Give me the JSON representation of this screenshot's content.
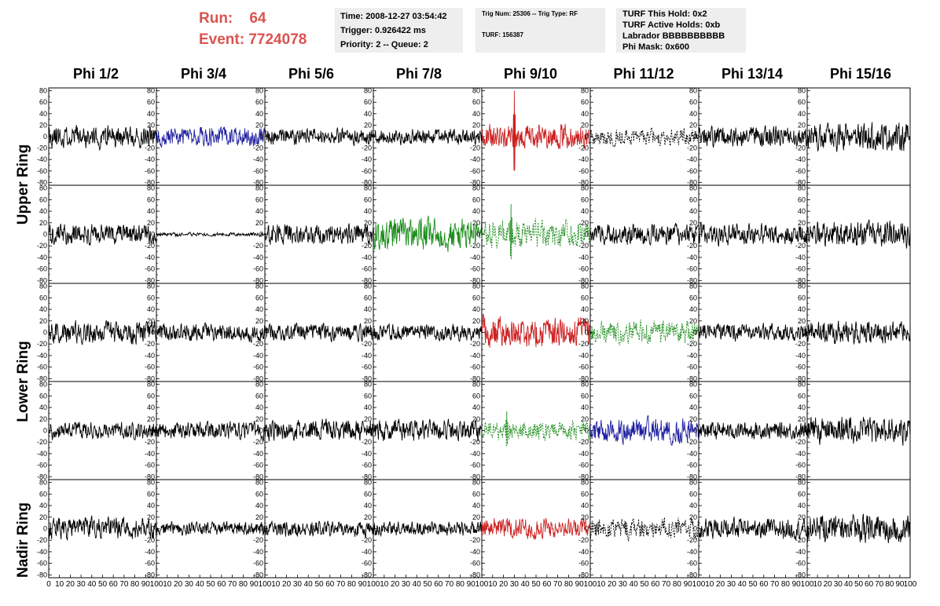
{
  "header": {
    "run_label": "Run:",
    "run_value": "64",
    "event_label": "Event:",
    "event_value": "7724078",
    "box1": [
      "Time: 2008-12-27 03:54:42",
      "Trigger: 0.926422 ms",
      "Priority: 2 -- Queue: 2"
    ],
    "box2_line1": "Trig Num: 25306 -- Trig Type: RF",
    "box2_line2": "TURF: 156387",
    "box3": [
      "TURF This Hold: 0x2",
      "TURF Active Holds: 0xb",
      "Labrador BBBBBBBBBB",
      "Phi Mask: 0x600"
    ],
    "accent_color": "#d9534f"
  },
  "phi_labels": [
    "Phi 1/2",
    "Phi 3/4",
    "Phi 5/6",
    "Phi 7/8",
    "Phi 9/10",
    "Phi 11/12",
    "Phi 13/14",
    "Phi 15/16"
  ],
  "ring_labels": {
    "upper": "Upper Ring",
    "lower": "Lower Ring",
    "nadir": "Nadir Ring"
  },
  "chart_data": {
    "type": "line",
    "xlim": [
      0,
      100
    ],
    "ylim": [
      -85,
      85
    ],
    "y_ticks": [
      80,
      60,
      40,
      20,
      0,
      -20,
      -40,
      -60,
      -80
    ],
    "x_ticks": [
      0,
      10,
      20,
      30,
      40,
      50,
      60,
      70,
      80,
      90,
      100
    ],
    "x_tick_labels_panel": [
      "0",
      "10",
      "20",
      "30",
      "40",
      "50",
      "60",
      "70",
      "80",
      "90",
      "100"
    ],
    "grid": false,
    "colors": {
      "black": "#000000",
      "blue": "#1f1fa0",
      "red": "#cc2222",
      "green": "#1a8c1a"
    },
    "panels": [
      [
        {
          "color": "black",
          "dashed": false,
          "amp": 18,
          "seed": 11
        },
        {
          "color": "blue",
          "dashed": false,
          "amp": 16,
          "seed": 12
        },
        {
          "color": "black",
          "dashed": false,
          "amp": 13,
          "seed": 13
        },
        {
          "color": "black",
          "dashed": false,
          "amp": 13,
          "seed": 14
        },
        {
          "color": "red",
          "dashed": false,
          "amp": 20,
          "seed": 15,
          "spike": {
            "x": 30,
            "amp": 80
          }
        },
        {
          "color": "black",
          "dashed": true,
          "amp": 14,
          "seed": 16
        },
        {
          "color": "black",
          "dashed": false,
          "amp": 17,
          "seed": 17
        },
        {
          "color": "black",
          "dashed": false,
          "amp": 22,
          "seed": 18
        }
      ],
      [
        {
          "color": "black",
          "dashed": false,
          "amp": 17,
          "seed": 21
        },
        {
          "color": "black",
          "dashed": false,
          "amp": 3,
          "seed": 22
        },
        {
          "color": "black",
          "dashed": false,
          "amp": 17,
          "seed": 23
        },
        {
          "color": "green",
          "dashed": false,
          "amp": 26,
          "seed": 24
        },
        {
          "color": "green",
          "dashed": true,
          "amp": 22,
          "seed": 25,
          "spike": {
            "x": 27,
            "amp": 55
          }
        },
        {
          "color": "black",
          "dashed": false,
          "amp": 17,
          "seed": 26
        },
        {
          "color": "black",
          "dashed": false,
          "amp": 17,
          "seed": 27
        },
        {
          "color": "black",
          "dashed": false,
          "amp": 22,
          "seed": 28
        }
      ],
      [
        {
          "color": "black",
          "dashed": false,
          "amp": 18,
          "seed": 31
        },
        {
          "color": "black",
          "dashed": false,
          "amp": 14,
          "seed": 32
        },
        {
          "color": "black",
          "dashed": false,
          "amp": 14,
          "seed": 33
        },
        {
          "color": "black",
          "dashed": false,
          "amp": 13,
          "seed": 34
        },
        {
          "color": "red",
          "dashed": false,
          "amp": 25,
          "seed": 35
        },
        {
          "color": "green",
          "dashed": true,
          "amp": 18,
          "seed": 36
        },
        {
          "color": "black",
          "dashed": false,
          "amp": 14,
          "seed": 37
        },
        {
          "color": "black",
          "dashed": false,
          "amp": 18,
          "seed": 38
        }
      ],
      [
        {
          "color": "black",
          "dashed": false,
          "amp": 14,
          "seed": 41
        },
        {
          "color": "black",
          "dashed": false,
          "amp": 14,
          "seed": 42
        },
        {
          "color": "black",
          "dashed": false,
          "amp": 17,
          "seed": 43
        },
        {
          "color": "black",
          "dashed": false,
          "amp": 17,
          "seed": 44
        },
        {
          "color": "green",
          "dashed": true,
          "amp": 15,
          "seed": 45,
          "spike": {
            "x": 23,
            "amp": 35
          }
        },
        {
          "color": "blue",
          "dashed": false,
          "amp": 20,
          "seed": 46
        },
        {
          "color": "black",
          "dashed": false,
          "amp": 14,
          "seed": 47
        },
        {
          "color": "black",
          "dashed": false,
          "amp": 22,
          "seed": 48
        }
      ],
      [
        {
          "color": "black",
          "dashed": false,
          "amp": 18,
          "seed": 51
        },
        {
          "color": "black",
          "dashed": false,
          "amp": 11,
          "seed": 52
        },
        {
          "color": "black",
          "dashed": false,
          "amp": 13,
          "seed": 53
        },
        {
          "color": "black",
          "dashed": false,
          "amp": 11,
          "seed": 54
        },
        {
          "color": "red",
          "dashed": false,
          "amp": 17,
          "seed": 55
        },
        {
          "color": "black",
          "dashed": true,
          "amp": 17,
          "seed": 56
        },
        {
          "color": "black",
          "dashed": false,
          "amp": 17,
          "seed": 57
        },
        {
          "color": "black",
          "dashed": false,
          "amp": 22,
          "seed": 58
        }
      ]
    ]
  }
}
